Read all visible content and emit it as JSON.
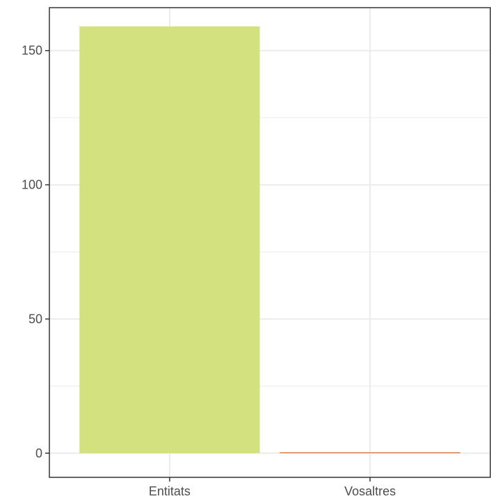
{
  "chart_data": {
    "type": "bar",
    "categories": [
      "Entitats",
      "Vosaltres"
    ],
    "values": [
      159,
      0
    ],
    "colors": [
      "#d4e17f",
      "#d86a2c"
    ],
    "ylim": [
      -9,
      166
    ],
    "yticks": [
      0,
      50,
      100,
      150
    ],
    "ytick_labels": [
      "0",
      "50",
      "100",
      "150"
    ],
    "title": "",
    "xlabel": "",
    "ylabel": "",
    "grid": true,
    "panel_border_color": "#333333",
    "grid_color": "#ebebeb"
  }
}
